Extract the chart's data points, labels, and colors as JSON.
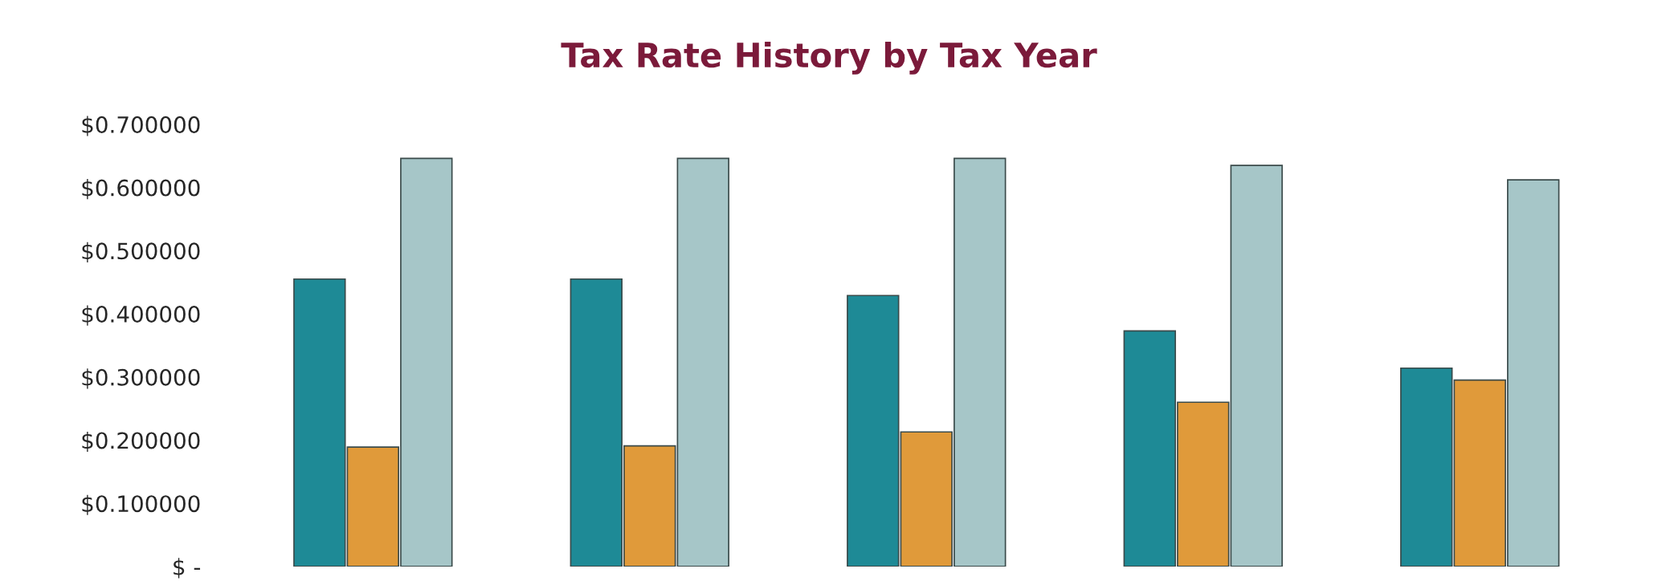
{
  "chart_data": {
    "type": "bar",
    "title": "Tax Rate History by Tax Year",
    "categories": [
      null,
      null,
      null,
      null,
      null
    ],
    "series": [
      {
        "color": "#1e8a96",
        "values": [
          0.455,
          0.455,
          0.429,
          0.373,
          0.314
        ]
      },
      {
        "color": "#e09a3a",
        "values": [
          0.189,
          0.191,
          0.213,
          0.26,
          0.295
        ]
      },
      {
        "color": "#a6c6c8",
        "values": [
          0.646,
          0.646,
          0.646,
          0.635,
          0.612
        ]
      }
    ],
    "ylim": [
      0,
      0.7
    ],
    "yticks": [
      {
        "value": 0,
        "label": "$ -"
      },
      {
        "value": 0.1,
        "label": "$0.100000"
      },
      {
        "value": 0.2,
        "label": "$0.200000"
      },
      {
        "value": 0.3,
        "label": "$0.300000"
      },
      {
        "value": 0.4,
        "label": "$0.400000"
      },
      {
        "value": 0.5,
        "label": "$0.500000"
      },
      {
        "value": 0.6,
        "label": "$0.600000"
      },
      {
        "value": 0.7,
        "label": "$0.700000"
      }
    ],
    "grid": false,
    "legend": false
  }
}
